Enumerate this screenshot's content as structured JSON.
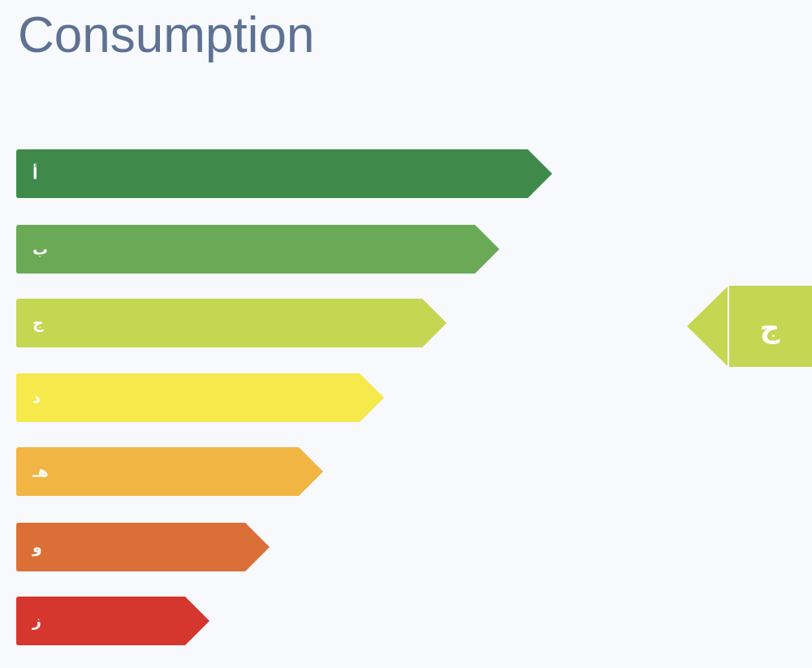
{
  "title": "Consumption",
  "ratings": [
    {
      "label": "أ",
      "color": "#3f8a4b"
    },
    {
      "label": "ب",
      "color": "#6aaa56"
    },
    {
      "label": "ج",
      "color": "#c5d652"
    },
    {
      "label": "د",
      "color": "#f6e94c"
    },
    {
      "label": "هـ",
      "color": "#f0b542"
    },
    {
      "label": "و",
      "color": "#da7037"
    },
    {
      "label": "ز",
      "color": "#d5372e"
    }
  ],
  "indicator": {
    "label": "ج",
    "color": "#c5d652"
  }
}
